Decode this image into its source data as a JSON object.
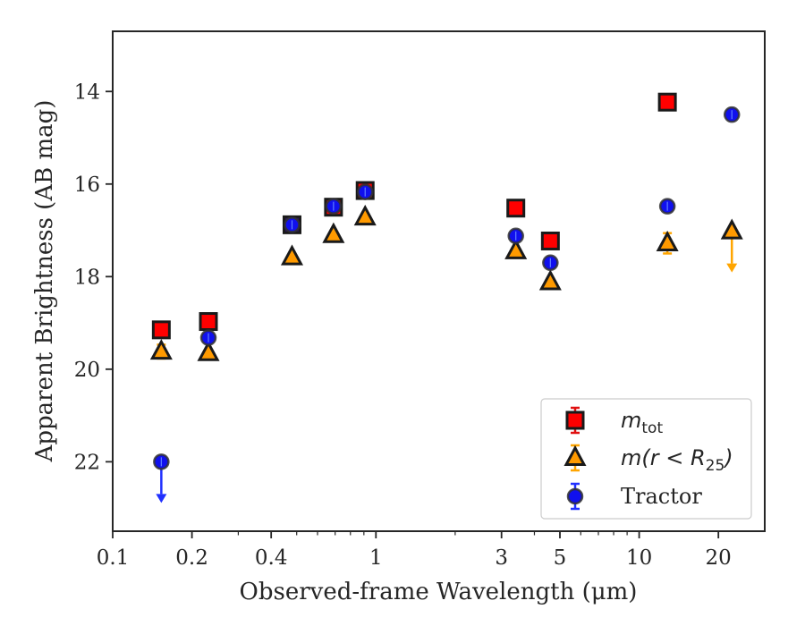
{
  "chart_data": {
    "type": "scatter",
    "xlabel": "Observed-frame Wavelength (μm)",
    "ylabel": "Apparent Brightness (AB mag)",
    "xscale": "log",
    "xlim": [
      0.1,
      30
    ],
    "ylim": [
      23.5,
      12.7
    ],
    "y_inverted": true,
    "grid": false,
    "legend_position": "lower right",
    "x_ticks": [
      {
        "value": 0.1,
        "label": "0.1"
      },
      {
        "value": 0.2,
        "label": "0.2"
      },
      {
        "value": 0.4,
        "label": "0.4"
      },
      {
        "value": 1,
        "label": "1"
      },
      {
        "value": 3,
        "label": "3"
      },
      {
        "value": 5,
        "label": "5"
      },
      {
        "value": 10,
        "label": "10"
      },
      {
        "value": 20,
        "label": "20"
      }
    ],
    "y_ticks": [
      {
        "value": 14,
        "label": "14"
      },
      {
        "value": 16,
        "label": "16"
      },
      {
        "value": 18,
        "label": "18"
      },
      {
        "value": 20,
        "label": "20"
      },
      {
        "value": 22,
        "label": "22"
      }
    ],
    "series": [
      {
        "name": "m_tot",
        "legend_main": "m",
        "legend_sub": "tot",
        "marker": "square",
        "color": "#ff0000",
        "edge_color": "#1a1a1a",
        "error_color": "#e01010",
        "points": [
          {
            "x": 0.153,
            "y": 19.15
          },
          {
            "x": 0.231,
            "y": 18.97
          },
          {
            "x": 0.69,
            "y": 16.5
          },
          {
            "x": 0.91,
            "y": 16.14
          },
          {
            "x": 3.4,
            "y": 16.52
          },
          {
            "x": 4.6,
            "y": 17.23
          },
          {
            "x": 12.8,
            "y": 14.23
          }
        ]
      },
      {
        "name": "m(r < R25)",
        "legend_main": "m(r < R",
        "legend_sub": "25",
        "legend_close": ")",
        "marker": "triangle",
        "color": "#ff9a00",
        "edge_color": "#1a1a1a",
        "error_color": "#ffa500",
        "points": [
          {
            "x": 0.153,
            "y": 19.62,
            "yerr": 0.15
          },
          {
            "x": 0.231,
            "y": 19.65
          },
          {
            "x": 0.48,
            "y": 17.58
          },
          {
            "x": 0.69,
            "y": 17.1
          },
          {
            "x": 0.91,
            "y": 16.72
          },
          {
            "x": 3.4,
            "y": 17.45
          },
          {
            "x": 4.6,
            "y": 18.12
          },
          {
            "x": 12.8,
            "y": 17.28,
            "yerr": 0.22
          },
          {
            "x": 22.5,
            "y": 17.02,
            "upper_limit": true
          }
        ]
      },
      {
        "name": "Tractor",
        "legend_main": "Tractor",
        "marker": "circle",
        "color": "#1010ee",
        "edge_color": "#333333",
        "error_color": "#2030ff",
        "points": [
          {
            "x": 0.153,
            "y": 22.0,
            "upper_limit": true
          },
          {
            "x": 0.231,
            "y": 19.32
          },
          {
            "x": 0.48,
            "y": 16.88
          },
          {
            "x": 0.69,
            "y": 16.48
          },
          {
            "x": 0.91,
            "y": 16.17
          },
          {
            "x": 3.4,
            "y": 17.12
          },
          {
            "x": 4.6,
            "y": 17.7
          },
          {
            "x": 12.8,
            "y": 16.48
          },
          {
            "x": 22.5,
            "y": 14.5
          }
        ]
      }
    ],
    "overlap_square": {
      "x": 0.48,
      "y": 16.88
    }
  }
}
